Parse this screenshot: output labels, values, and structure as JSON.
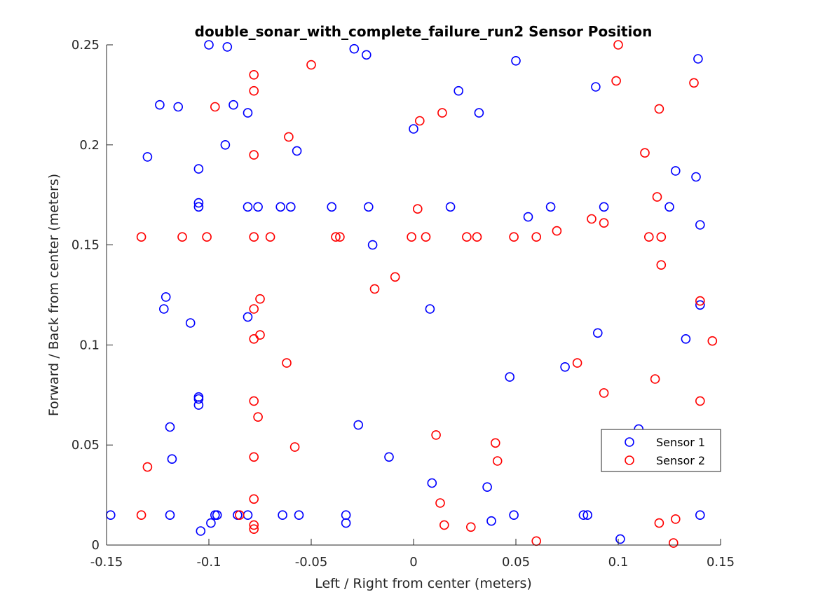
{
  "chart_data": {
    "type": "scatter",
    "title": "double_sonar_with_complete_failure_run2 Sensor Position",
    "xlabel": "Left / Right from center (meters)",
    "ylabel": "Forward / Back from center (meters)",
    "xlim": [
      -0.15,
      0.15
    ],
    "ylim": [
      0,
      0.25
    ],
    "xticks": [
      -0.15,
      -0.1,
      -0.05,
      0,
      0.05,
      0.1,
      0.15
    ],
    "xtick_labels": [
      "-0.15",
      "-0.1",
      "-0.05",
      "0",
      "0.05",
      "0.1",
      "0.15"
    ],
    "yticks": [
      0,
      0.05,
      0.1,
      0.15,
      0.2,
      0.25
    ],
    "ytick_labels": [
      "0",
      "0.05",
      "0.1",
      "0.15",
      "0.2",
      "0.25"
    ],
    "grid": false,
    "legend_position": "lower-right",
    "series": [
      {
        "name": "Sensor 1",
        "color": "#0000ff",
        "points": [
          [
            -0.1,
            0.25
          ],
          [
            -0.091,
            0.249
          ],
          [
            -0.029,
            0.248
          ],
          [
            -0.023,
            0.245
          ],
          [
            0.05,
            0.242
          ],
          [
            0.139,
            0.243
          ],
          [
            -0.124,
            0.22
          ],
          [
            -0.115,
            0.219
          ],
          [
            -0.088,
            0.22
          ],
          [
            -0.081,
            0.216
          ],
          [
            0.022,
            0.227
          ],
          [
            0.032,
            0.216
          ],
          [
            0.089,
            0.229
          ],
          [
            0.0,
            0.208
          ],
          [
            -0.13,
            0.194
          ],
          [
            -0.092,
            0.2
          ],
          [
            -0.057,
            0.197
          ],
          [
            -0.105,
            0.188
          ],
          [
            0.128,
            0.187
          ],
          [
            0.138,
            0.184
          ],
          [
            -0.105,
            0.171
          ],
          [
            -0.105,
            0.169
          ],
          [
            -0.081,
            0.169
          ],
          [
            -0.076,
            0.169
          ],
          [
            -0.065,
            0.169
          ],
          [
            -0.06,
            0.169
          ],
          [
            -0.04,
            0.169
          ],
          [
            -0.022,
            0.169
          ],
          [
            0.018,
            0.169
          ],
          [
            0.067,
            0.169
          ],
          [
            0.093,
            0.169
          ],
          [
            0.125,
            0.169
          ],
          [
            0.056,
            0.164
          ],
          [
            0.14,
            0.16
          ],
          [
            -0.02,
            0.15
          ],
          [
            -0.121,
            0.124
          ],
          [
            -0.122,
            0.118
          ],
          [
            0.008,
            0.118
          ],
          [
            0.14,
            0.12
          ],
          [
            -0.109,
            0.111
          ],
          [
            -0.081,
            0.114
          ],
          [
            0.09,
            0.106
          ],
          [
            0.133,
            0.103
          ],
          [
            0.074,
            0.089
          ],
          [
            0.047,
            0.084
          ],
          [
            -0.105,
            0.074
          ],
          [
            -0.105,
            0.073
          ],
          [
            -0.105,
            0.07
          ],
          [
            -0.119,
            0.059
          ],
          [
            -0.027,
            0.06
          ],
          [
            0.11,
            0.058
          ],
          [
            -0.118,
            0.043
          ],
          [
            -0.012,
            0.044
          ],
          [
            0.009,
            0.031
          ],
          [
            0.036,
            0.029
          ],
          [
            -0.148,
            0.015
          ],
          [
            -0.119,
            0.015
          ],
          [
            -0.096,
            0.015
          ],
          [
            -0.097,
            0.015
          ],
          [
            -0.086,
            0.015
          ],
          [
            -0.081,
            0.015
          ],
          [
            -0.064,
            0.015
          ],
          [
            -0.056,
            0.015
          ],
          [
            -0.033,
            0.015
          ],
          [
            0.049,
            0.015
          ],
          [
            0.083,
            0.015
          ],
          [
            0.085,
            0.015
          ],
          [
            0.14,
            0.015
          ],
          [
            -0.099,
            0.011
          ],
          [
            -0.033,
            0.011
          ],
          [
            0.038,
            0.012
          ],
          [
            -0.104,
            0.007
          ],
          [
            0.101,
            0.003
          ]
        ]
      },
      {
        "name": "Sensor 2",
        "color": "#ff0000",
        "points": [
          [
            0.1,
            0.25
          ],
          [
            -0.05,
            0.24
          ],
          [
            -0.078,
            0.235
          ],
          [
            -0.078,
            0.227
          ],
          [
            0.099,
            0.232
          ],
          [
            0.137,
            0.231
          ],
          [
            -0.097,
            0.219
          ],
          [
            0.014,
            0.216
          ],
          [
            0.12,
            0.218
          ],
          [
            0.003,
            0.212
          ],
          [
            -0.061,
            0.204
          ],
          [
            -0.078,
            0.195
          ],
          [
            0.113,
            0.196
          ],
          [
            0.119,
            0.174
          ],
          [
            0.002,
            0.168
          ],
          [
            0.087,
            0.163
          ],
          [
            0.093,
            0.161
          ],
          [
            0.07,
            0.157
          ],
          [
            -0.133,
            0.154
          ],
          [
            -0.113,
            0.154
          ],
          [
            -0.101,
            0.154
          ],
          [
            -0.078,
            0.154
          ],
          [
            -0.07,
            0.154
          ],
          [
            -0.038,
            0.154
          ],
          [
            -0.036,
            0.154
          ],
          [
            -0.001,
            0.154
          ],
          [
            0.006,
            0.154
          ],
          [
            0.026,
            0.154
          ],
          [
            0.031,
            0.154
          ],
          [
            0.049,
            0.154
          ],
          [
            0.06,
            0.154
          ],
          [
            0.115,
            0.154
          ],
          [
            0.121,
            0.154
          ],
          [
            0.121,
            0.14
          ],
          [
            -0.009,
            0.134
          ],
          [
            -0.019,
            0.128
          ],
          [
            -0.075,
            0.123
          ],
          [
            -0.078,
            0.118
          ],
          [
            0.14,
            0.122
          ],
          [
            -0.075,
            0.105
          ],
          [
            -0.078,
            0.103
          ],
          [
            0.146,
            0.102
          ],
          [
            -0.062,
            0.091
          ],
          [
            0.08,
            0.091
          ],
          [
            0.118,
            0.083
          ],
          [
            0.093,
            0.076
          ],
          [
            -0.078,
            0.072
          ],
          [
            0.14,
            0.072
          ],
          [
            -0.076,
            0.064
          ],
          [
            0.011,
            0.055
          ],
          [
            0.04,
            0.051
          ],
          [
            -0.058,
            0.049
          ],
          [
            -0.078,
            0.044
          ],
          [
            0.041,
            0.042
          ],
          [
            -0.13,
            0.039
          ],
          [
            -0.078,
            0.023
          ],
          [
            0.013,
            0.021
          ],
          [
            -0.133,
            0.015
          ],
          [
            -0.085,
            0.015
          ],
          [
            0.015,
            0.01
          ],
          [
            0.028,
            0.009
          ],
          [
            -0.078,
            0.01
          ],
          [
            -0.078,
            0.008
          ],
          [
            0.12,
            0.011
          ],
          [
            0.128,
            0.013
          ],
          [
            0.06,
            0.002
          ],
          [
            0.127,
            0.001
          ]
        ]
      }
    ]
  }
}
